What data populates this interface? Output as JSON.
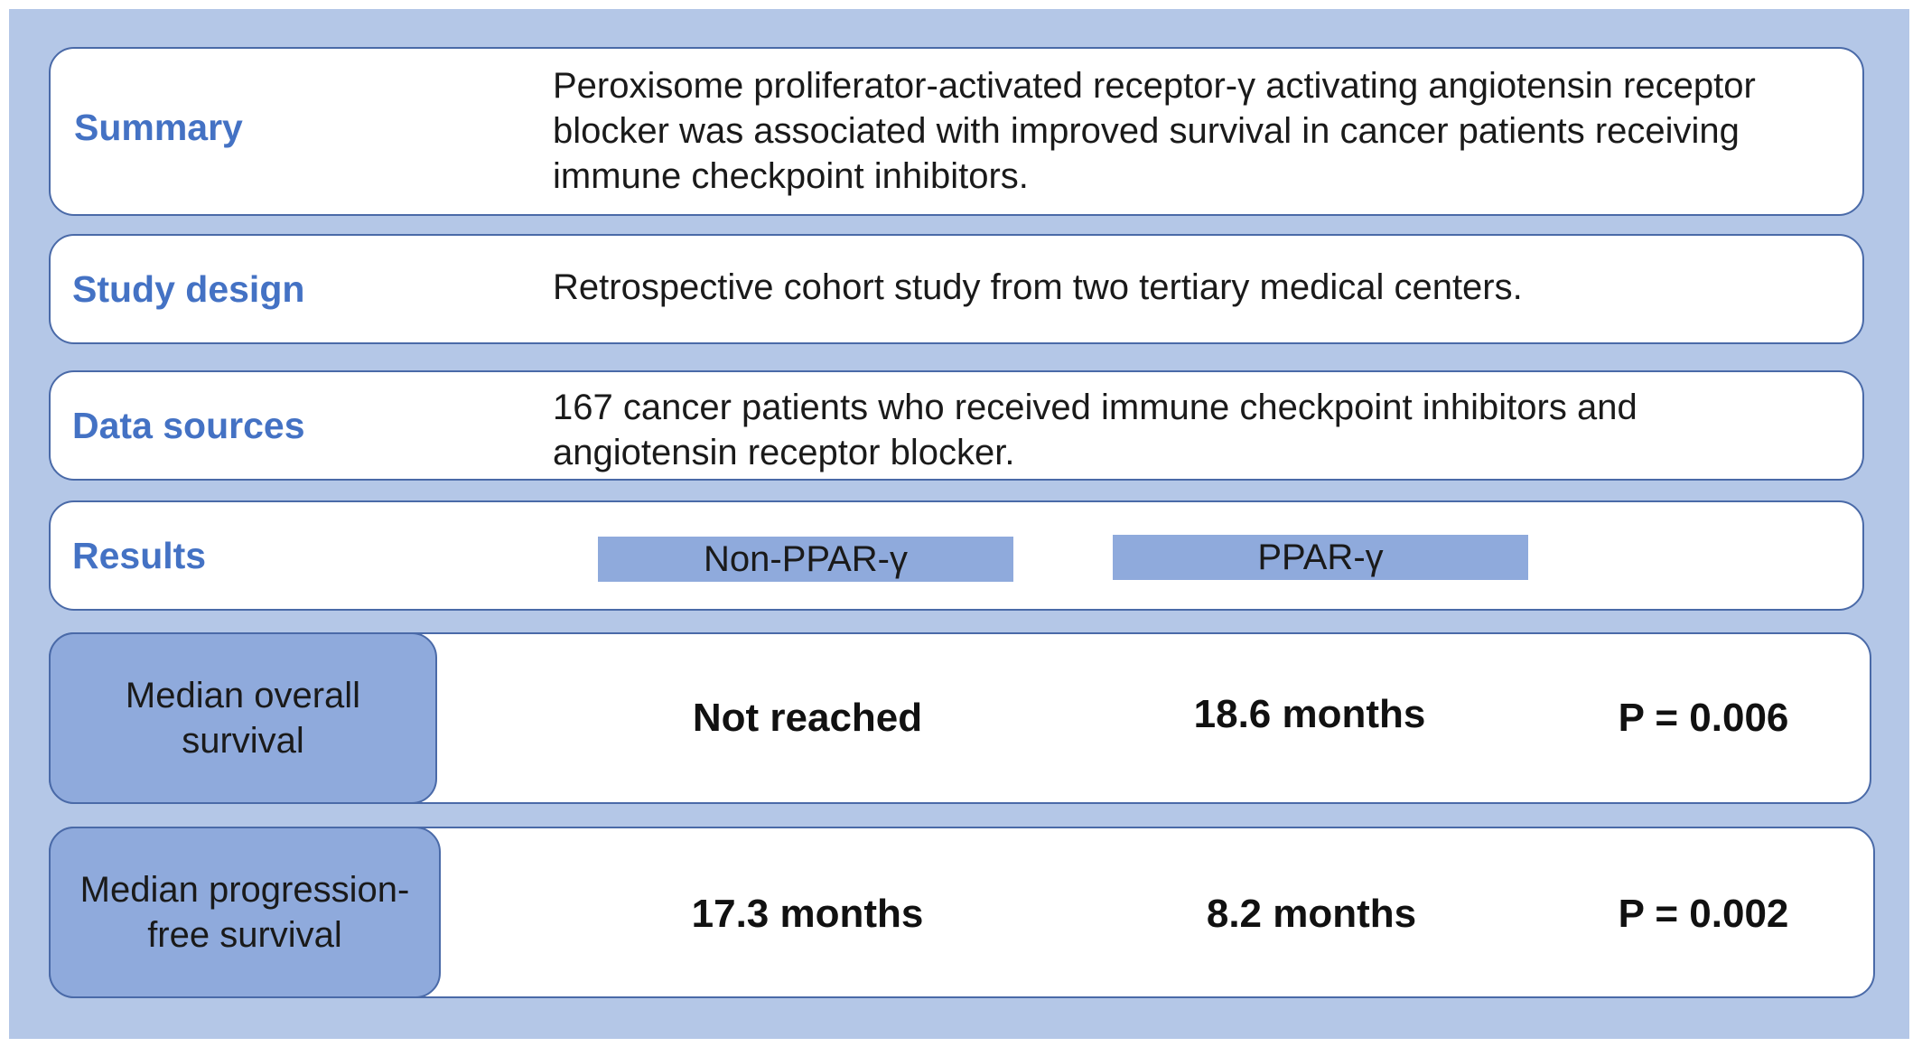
{
  "summary": {
    "label": "Summary",
    "text": "Peroxisome proliferator-activated receptor-γ activating angiotensin receptor blocker was associated with improved survival in cancer patients receiving immune checkpoint inhibitors."
  },
  "study_design": {
    "label": "Study design",
    "text": "Retrospective cohort study from two tertiary medical centers."
  },
  "data_sources": {
    "label": "Data sources",
    "text": "167 cancer patients who received immune checkpoint inhibitors and angiotensin receptor blocker."
  },
  "results": {
    "label": "Results",
    "groups": [
      "Non-PPAR-γ",
      "PPAR-γ"
    ],
    "rows": [
      {
        "metric": "Median overall survival",
        "non_ppar": "Not reached",
        "ppar": "18.6 months",
        "p_value": "P = 0.006"
      },
      {
        "metric": "Median progression-free survival",
        "non_ppar": "17.3 months",
        "ppar": "8.2 months",
        "p_value": "P = 0.002"
      }
    ]
  },
  "colors": {
    "background": "#b4c7e7",
    "label_blue": "#4472c4",
    "tag_fill": "#8faadc",
    "border": "#4a6aa8"
  }
}
